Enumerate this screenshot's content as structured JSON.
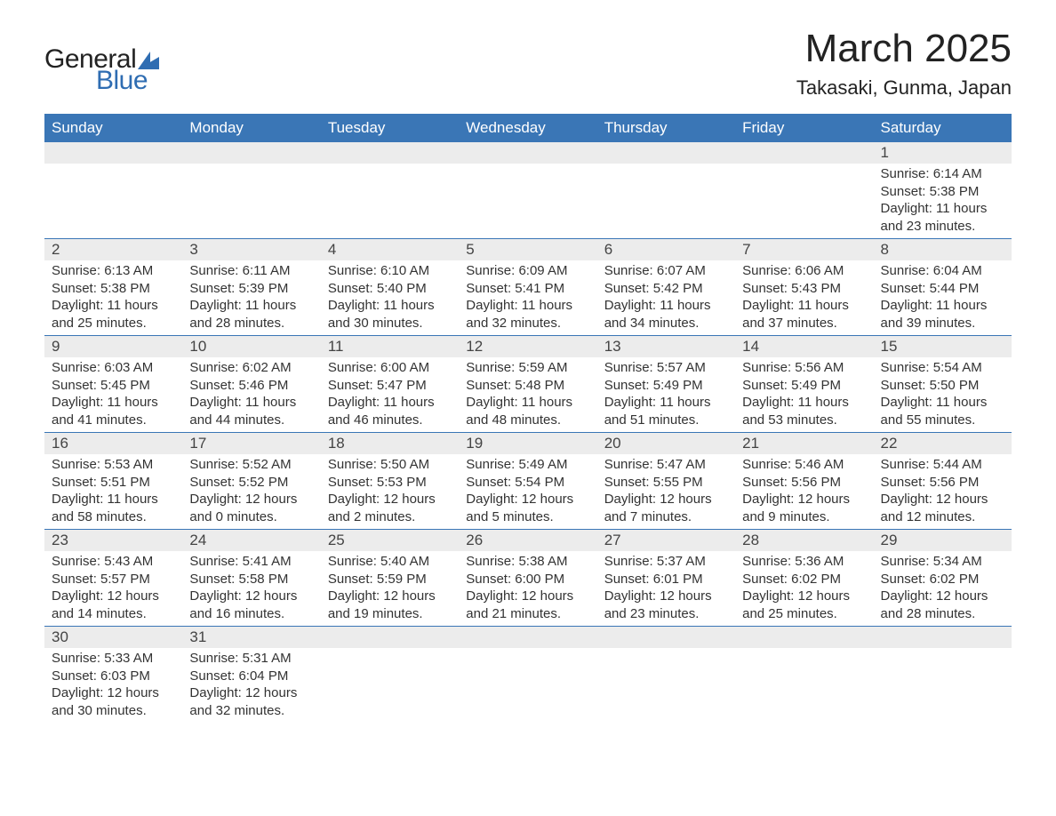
{
  "logo": {
    "text1": "General",
    "text2": "Blue",
    "shape_color": "#2f6db2"
  },
  "title": "March 2025",
  "location": "Takasaki, Gunma, Japan",
  "colors": {
    "header_bg": "#3a76b6",
    "header_text": "#ffffff",
    "daynum_bg": "#ececec",
    "border": "#3a76b6",
    "text": "#333333",
    "background": "#ffffff"
  },
  "typography": {
    "title_fontsize": 44,
    "location_fontsize": 22,
    "dayheader_fontsize": 17,
    "daynum_fontsize": 17,
    "content_fontsize": 15
  },
  "day_headers": [
    "Sunday",
    "Monday",
    "Tuesday",
    "Wednesday",
    "Thursday",
    "Friday",
    "Saturday"
  ],
  "weeks": [
    [
      null,
      null,
      null,
      null,
      null,
      null,
      {
        "n": "1",
        "sr": "Sunrise: 6:14 AM",
        "ss": "Sunset: 5:38 PM",
        "d1": "Daylight: 11 hours",
        "d2": "and 23 minutes."
      }
    ],
    [
      {
        "n": "2",
        "sr": "Sunrise: 6:13 AM",
        "ss": "Sunset: 5:38 PM",
        "d1": "Daylight: 11 hours",
        "d2": "and 25 minutes."
      },
      {
        "n": "3",
        "sr": "Sunrise: 6:11 AM",
        "ss": "Sunset: 5:39 PM",
        "d1": "Daylight: 11 hours",
        "d2": "and 28 minutes."
      },
      {
        "n": "4",
        "sr": "Sunrise: 6:10 AM",
        "ss": "Sunset: 5:40 PM",
        "d1": "Daylight: 11 hours",
        "d2": "and 30 minutes."
      },
      {
        "n": "5",
        "sr": "Sunrise: 6:09 AM",
        "ss": "Sunset: 5:41 PM",
        "d1": "Daylight: 11 hours",
        "d2": "and 32 minutes."
      },
      {
        "n": "6",
        "sr": "Sunrise: 6:07 AM",
        "ss": "Sunset: 5:42 PM",
        "d1": "Daylight: 11 hours",
        "d2": "and 34 minutes."
      },
      {
        "n": "7",
        "sr": "Sunrise: 6:06 AM",
        "ss": "Sunset: 5:43 PM",
        "d1": "Daylight: 11 hours",
        "d2": "and 37 minutes."
      },
      {
        "n": "8",
        "sr": "Sunrise: 6:04 AM",
        "ss": "Sunset: 5:44 PM",
        "d1": "Daylight: 11 hours",
        "d2": "and 39 minutes."
      }
    ],
    [
      {
        "n": "9",
        "sr": "Sunrise: 6:03 AM",
        "ss": "Sunset: 5:45 PM",
        "d1": "Daylight: 11 hours",
        "d2": "and 41 minutes."
      },
      {
        "n": "10",
        "sr": "Sunrise: 6:02 AM",
        "ss": "Sunset: 5:46 PM",
        "d1": "Daylight: 11 hours",
        "d2": "and 44 minutes."
      },
      {
        "n": "11",
        "sr": "Sunrise: 6:00 AM",
        "ss": "Sunset: 5:47 PM",
        "d1": "Daylight: 11 hours",
        "d2": "and 46 minutes."
      },
      {
        "n": "12",
        "sr": "Sunrise: 5:59 AM",
        "ss": "Sunset: 5:48 PM",
        "d1": "Daylight: 11 hours",
        "d2": "and 48 minutes."
      },
      {
        "n": "13",
        "sr": "Sunrise: 5:57 AM",
        "ss": "Sunset: 5:49 PM",
        "d1": "Daylight: 11 hours",
        "d2": "and 51 minutes."
      },
      {
        "n": "14",
        "sr": "Sunrise: 5:56 AM",
        "ss": "Sunset: 5:49 PM",
        "d1": "Daylight: 11 hours",
        "d2": "and 53 minutes."
      },
      {
        "n": "15",
        "sr": "Sunrise: 5:54 AM",
        "ss": "Sunset: 5:50 PM",
        "d1": "Daylight: 11 hours",
        "d2": "and 55 minutes."
      }
    ],
    [
      {
        "n": "16",
        "sr": "Sunrise: 5:53 AM",
        "ss": "Sunset: 5:51 PM",
        "d1": "Daylight: 11 hours",
        "d2": "and 58 minutes."
      },
      {
        "n": "17",
        "sr": "Sunrise: 5:52 AM",
        "ss": "Sunset: 5:52 PM",
        "d1": "Daylight: 12 hours",
        "d2": "and 0 minutes."
      },
      {
        "n": "18",
        "sr": "Sunrise: 5:50 AM",
        "ss": "Sunset: 5:53 PM",
        "d1": "Daylight: 12 hours",
        "d2": "and 2 minutes."
      },
      {
        "n": "19",
        "sr": "Sunrise: 5:49 AM",
        "ss": "Sunset: 5:54 PM",
        "d1": "Daylight: 12 hours",
        "d2": "and 5 minutes."
      },
      {
        "n": "20",
        "sr": "Sunrise: 5:47 AM",
        "ss": "Sunset: 5:55 PM",
        "d1": "Daylight: 12 hours",
        "d2": "and 7 minutes."
      },
      {
        "n": "21",
        "sr": "Sunrise: 5:46 AM",
        "ss": "Sunset: 5:56 PM",
        "d1": "Daylight: 12 hours",
        "d2": "and 9 minutes."
      },
      {
        "n": "22",
        "sr": "Sunrise: 5:44 AM",
        "ss": "Sunset: 5:56 PM",
        "d1": "Daylight: 12 hours",
        "d2": "and 12 minutes."
      }
    ],
    [
      {
        "n": "23",
        "sr": "Sunrise: 5:43 AM",
        "ss": "Sunset: 5:57 PM",
        "d1": "Daylight: 12 hours",
        "d2": "and 14 minutes."
      },
      {
        "n": "24",
        "sr": "Sunrise: 5:41 AM",
        "ss": "Sunset: 5:58 PM",
        "d1": "Daylight: 12 hours",
        "d2": "and 16 minutes."
      },
      {
        "n": "25",
        "sr": "Sunrise: 5:40 AM",
        "ss": "Sunset: 5:59 PM",
        "d1": "Daylight: 12 hours",
        "d2": "and 19 minutes."
      },
      {
        "n": "26",
        "sr": "Sunrise: 5:38 AM",
        "ss": "Sunset: 6:00 PM",
        "d1": "Daylight: 12 hours",
        "d2": "and 21 minutes."
      },
      {
        "n": "27",
        "sr": "Sunrise: 5:37 AM",
        "ss": "Sunset: 6:01 PM",
        "d1": "Daylight: 12 hours",
        "d2": "and 23 minutes."
      },
      {
        "n": "28",
        "sr": "Sunrise: 5:36 AM",
        "ss": "Sunset: 6:02 PM",
        "d1": "Daylight: 12 hours",
        "d2": "and 25 minutes."
      },
      {
        "n": "29",
        "sr": "Sunrise: 5:34 AM",
        "ss": "Sunset: 6:02 PM",
        "d1": "Daylight: 12 hours",
        "d2": "and 28 minutes."
      }
    ],
    [
      {
        "n": "30",
        "sr": "Sunrise: 5:33 AM",
        "ss": "Sunset: 6:03 PM",
        "d1": "Daylight: 12 hours",
        "d2": "and 30 minutes."
      },
      {
        "n": "31",
        "sr": "Sunrise: 5:31 AM",
        "ss": "Sunset: 6:04 PM",
        "d1": "Daylight: 12 hours",
        "d2": "and 32 minutes."
      },
      null,
      null,
      null,
      null,
      null
    ]
  ]
}
